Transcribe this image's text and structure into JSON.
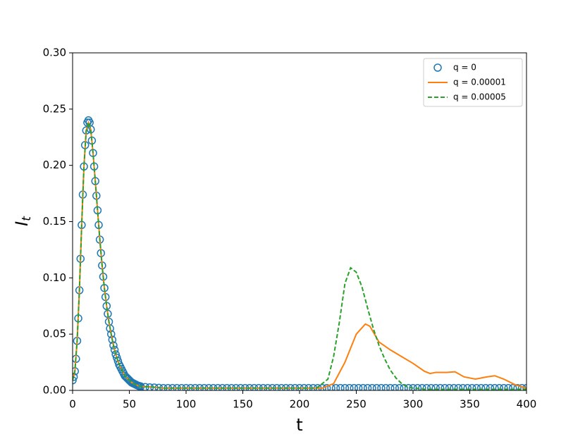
{
  "chart_data": {
    "type": "line",
    "xlabel": "t",
    "ylabel": "I",
    "ylabel_subscript": "t",
    "xlim": [
      0,
      400
    ],
    "ylim": [
      0,
      0.3
    ],
    "xticks": [
      0,
      50,
      100,
      150,
      200,
      250,
      300,
      350,
      400
    ],
    "yticks": [
      {
        "value": 0,
        "label": "0.00"
      },
      0.05,
      {
        "value": 0.1,
        "label": "0.10"
      },
      0.15,
      {
        "value": 0.2,
        "label": "0.20"
      },
      0.25,
      {
        "value": 0.3,
        "label": "0.30"
      }
    ],
    "legend": "upper right",
    "series": [
      {
        "name": "q = 0",
        "color": "#1f77b4",
        "marker": "o",
        "x": [
          0,
          1,
          2,
          3,
          4,
          5,
          6,
          7,
          8,
          9,
          10,
          11,
          12,
          13,
          14,
          15,
          16,
          17,
          18,
          19,
          20,
          21,
          22,
          23,
          24,
          25,
          26,
          27,
          28,
          29,
          30,
          31,
          32,
          33,
          34,
          35,
          36,
          37,
          38,
          39,
          40,
          41,
          42,
          43,
          44,
          45,
          46,
          47,
          48,
          49,
          50,
          51,
          52,
          53,
          54,
          55,
          56,
          57,
          58,
          59,
          60,
          64,
          68,
          72,
          76,
          80,
          84,
          88,
          92,
          96,
          100,
          104,
          108,
          112,
          116,
          120,
          124,
          128,
          132,
          136,
          140,
          144,
          148,
          152,
          156,
          160,
          164,
          168,
          172,
          176,
          180,
          184,
          188,
          192,
          196,
          200,
          204,
          208,
          212,
          216,
          220,
          224,
          228,
          232,
          236,
          240,
          244,
          248,
          252,
          256,
          260,
          264,
          268,
          272,
          276,
          280,
          284,
          288,
          292,
          296,
          300,
          304,
          308,
          312,
          316,
          320,
          324,
          328,
          332,
          336,
          340,
          344,
          348,
          352,
          356,
          360,
          364,
          368,
          372,
          376,
          380,
          384,
          388,
          392,
          396,
          400
        ],
        "values": [
          0.009,
          0.012,
          0.017,
          0.028,
          0.044,
          0.064,
          0.089,
          0.117,
          0.147,
          0.174,
          0.199,
          0.218,
          0.231,
          0.238,
          0.24,
          0.238,
          0.232,
          0.222,
          0.211,
          0.199,
          0.186,
          0.173,
          0.16,
          0.147,
          0.134,
          0.122,
          0.111,
          0.101,
          0.091,
          0.083,
          0.075,
          0.068,
          0.061,
          0.055,
          0.05,
          0.045,
          0.04,
          0.036,
          0.032,
          0.029,
          0.026,
          0.023,
          0.021,
          0.019,
          0.017,
          0.015,
          0.013,
          0.012,
          0.011,
          0.01,
          0.009,
          0.008,
          0.007,
          0.0065,
          0.006,
          0.0055,
          0.005,
          0.0045,
          0.004,
          0.0038,
          0.0035,
          0.003,
          0.0027,
          0.0025,
          0.0023,
          0.002,
          0.002,
          0.002,
          0.002,
          0.002,
          0.002,
          0.002,
          0.002,
          0.002,
          0.002,
          0.002,
          0.002,
          0.002,
          0.002,
          0.002,
          0.002,
          0.002,
          0.002,
          0.002,
          0.002,
          0.002,
          0.002,
          0.002,
          0.002,
          0.002,
          0.002,
          0.002,
          0.002,
          0.002,
          0.002,
          0.002,
          0.002,
          0.002,
          0.002,
          0.002,
          0.002,
          0.002,
          0.002,
          0.002,
          0.002,
          0.002,
          0.002,
          0.002,
          0.002,
          0.002,
          0.002,
          0.002,
          0.002,
          0.002,
          0.002,
          0.002,
          0.002,
          0.002,
          0.002,
          0.002,
          0.002,
          0.002,
          0.002,
          0.002,
          0.002,
          0.002,
          0.002,
          0.002,
          0.002,
          0.002,
          0.002,
          0.002,
          0.002,
          0.002,
          0.002,
          0.002,
          0.002,
          0.002,
          0.002,
          0.002,
          0.002,
          0.002,
          0.002,
          0.002,
          0.002,
          0.002
        ]
      },
      {
        "name": "q = 0.00001",
        "color": "#ff7f0e",
        "linestyle": "solid",
        "x": [
          0,
          2,
          4,
          6,
          8,
          10,
          12,
          14,
          16,
          18,
          20,
          22,
          24,
          26,
          28,
          30,
          32,
          34,
          36,
          38,
          40,
          42,
          44,
          46,
          48,
          50,
          52,
          54,
          56,
          58,
          60,
          70,
          80,
          90,
          100,
          110,
          120,
          130,
          140,
          150,
          160,
          170,
          180,
          190,
          200,
          210,
          220,
          230,
          240,
          250,
          258,
          262,
          270,
          280,
          290,
          300,
          310,
          315,
          320,
          330,
          337,
          345,
          355,
          365,
          372,
          380,
          390,
          400
        ],
        "values": [
          0.009,
          0.017,
          0.044,
          0.089,
          0.147,
          0.199,
          0.231,
          0.238,
          0.232,
          0.211,
          0.186,
          0.16,
          0.134,
          0.111,
          0.091,
          0.075,
          0.061,
          0.05,
          0.04,
          0.032,
          0.026,
          0.021,
          0.017,
          0.013,
          0.011,
          0.009,
          0.007,
          0.006,
          0.005,
          0.004,
          0.0035,
          0.003,
          0.002,
          0.002,
          0.002,
          0.002,
          0.002,
          0.002,
          0.002,
          0.002,
          0.002,
          0.002,
          0.002,
          0.002,
          0.002,
          0.002,
          0.002,
          0.006,
          0.025,
          0.05,
          0.059,
          0.057,
          0.043,
          0.036,
          0.03,
          0.024,
          0.017,
          0.015,
          0.016,
          0.016,
          0.0165,
          0.012,
          0.01,
          0.012,
          0.013,
          0.01,
          0.005,
          0.002
        ]
      },
      {
        "name": "q = 0.00005",
        "color": "#2ca02c",
        "linestyle": "dashed",
        "x": [
          0,
          2,
          4,
          6,
          8,
          10,
          12,
          14,
          16,
          18,
          20,
          22,
          24,
          26,
          28,
          30,
          32,
          34,
          36,
          38,
          40,
          42,
          44,
          46,
          48,
          50,
          52,
          54,
          56,
          58,
          60,
          70,
          80,
          90,
          100,
          110,
          120,
          130,
          140,
          150,
          160,
          170,
          180,
          190,
          200,
          210,
          215,
          225,
          230,
          235,
          240,
          245,
          250,
          255,
          260,
          265,
          270,
          275,
          280,
          285,
          290,
          295,
          300,
          310,
          320,
          330,
          340,
          350,
          360,
          370,
          380,
          390,
          400
        ],
        "values": [
          0.009,
          0.017,
          0.044,
          0.089,
          0.147,
          0.199,
          0.231,
          0.238,
          0.232,
          0.211,
          0.186,
          0.16,
          0.134,
          0.111,
          0.091,
          0.075,
          0.061,
          0.05,
          0.04,
          0.032,
          0.026,
          0.021,
          0.017,
          0.013,
          0.011,
          0.009,
          0.007,
          0.006,
          0.005,
          0.004,
          0.0035,
          0.003,
          0.002,
          0.002,
          0.002,
          0.002,
          0.002,
          0.002,
          0.002,
          0.002,
          0.002,
          0.002,
          0.002,
          0.002,
          0.002,
          0.002,
          0.002,
          0.01,
          0.03,
          0.06,
          0.095,
          0.109,
          0.105,
          0.092,
          0.073,
          0.055,
          0.04,
          0.028,
          0.018,
          0.011,
          0.006,
          0.003,
          0.002,
          0.001,
          0.001,
          0.001,
          0.001,
          0.001,
          0.001,
          0.001,
          0.001,
          0.001,
          0.001
        ]
      }
    ]
  }
}
